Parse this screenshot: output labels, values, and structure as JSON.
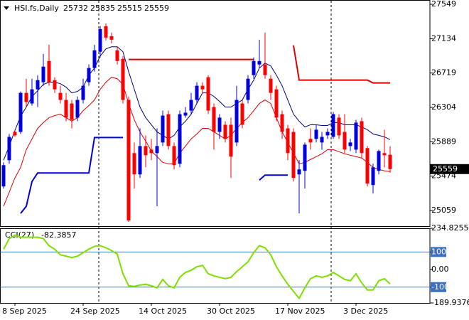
{
  "chart_data": [
    {
      "type": "candlestick",
      "title": "HSI.fs,Daily",
      "categories": [
        null,
        null,
        "8 Sep 2025",
        null,
        null,
        null,
        null,
        null,
        null,
        null,
        null,
        null,
        null,
        null,
        "24 Sep 2025",
        null,
        null,
        null,
        null,
        null,
        null,
        null,
        null,
        null,
        null,
        null,
        "14 Oct 2025",
        null,
        null,
        null,
        null,
        null,
        null,
        null,
        null,
        null,
        null,
        null,
        "30 Oct 2025",
        null,
        null,
        null,
        null,
        null,
        null,
        null,
        null,
        null,
        null,
        null,
        "17 Nov 2025",
        null,
        null,
        null,
        null,
        null,
        null,
        null,
        null,
        null,
        null,
        null,
        "3 Dec 2025",
        null,
        null,
        null,
        null,
        null,
        null
      ],
      "open": [
        25349,
        25666,
        26008,
        26008,
        26479,
        26351,
        26522,
        26608,
        26864,
        26633,
        26479,
        26394,
        26351,
        26180,
        26394,
        26608,
        26779,
        26976,
        27284,
        27164,
        26993,
        26890,
        26394,
        25752,
        25495,
        25837,
        25794,
        25752,
        25880,
        26222,
        25837,
        25623,
        26205,
        26265,
        26394,
        26565,
        26668,
        26308,
        26008,
        26094,
        26094,
        25880,
        26351,
        26394,
        26693,
        26822,
        26822,
        26650,
        26522,
        26222,
        26051,
        26008,
        25495,
        25538,
        25923,
        25923,
        25880,
        25966,
        25948,
        26180,
        26008,
        25837,
        25794,
        26137,
        25812,
        25366,
        25538,
        25752,
        25732
      ],
      "high": [
        25640,
        25983,
        26034,
        26496,
        26650,
        26650,
        26693,
        26950,
        27061,
        26668,
        26565,
        26479,
        26394,
        26436,
        26650,
        26822,
        27061,
        27284,
        27318,
        27207,
        27036,
        26924,
        26436,
        25880,
        26051,
        25966,
        25923,
        26051,
        26265,
        26265,
        25880,
        26265,
        26308,
        26479,
        26608,
        26608,
        26693,
        26351,
        26222,
        26137,
        26180,
        26565,
        26394,
        26693,
        26907,
        27121,
        27207,
        26693,
        26565,
        26265,
        26094,
        26051,
        25666,
        25880,
        26051,
        26094,
        26008,
        26051,
        26248,
        26222,
        26222,
        25923,
        26154,
        26180,
        25837,
        25623,
        25794,
        26034,
        25835
      ],
      "low": [
        25324,
        25623,
        25948,
        25983,
        26308,
        26325,
        26308,
        26565,
        26565,
        26479,
        26351,
        26137,
        26051,
        26137,
        26351,
        26565,
        26736,
        26907,
        27113,
        27078,
        26822,
        26351,
        24921,
        25324,
        25452,
        25580,
        25666,
        25110,
        25837,
        25794,
        25555,
        25580,
        26180,
        26222,
        26351,
        26479,
        26222,
        25794,
        25923,
        25880,
        25452,
        25837,
        26051,
        26351,
        26650,
        26779,
        26650,
        26394,
        26137,
        25923,
        25666,
        25409,
        25024,
        25324,
        25794,
        25880,
        25794,
        25923,
        25923,
        25923,
        25752,
        25777,
        25752,
        25692,
        25349,
        25264,
        25495,
        25580,
        25515
      ],
      "close": [
        25606,
        25948,
        25966,
        26479,
        26368,
        26522,
        26633,
        26796,
        26608,
        26522,
        26394,
        26180,
        26154,
        26394,
        26565,
        26779,
        26993,
        27250,
        27147,
        27121,
        26864,
        26394,
        24938,
        25495,
        25837,
        25726,
        25752,
        25837,
        26205,
        25837,
        25606,
        26222,
        26240,
        26394,
        26565,
        26522,
        26265,
        26008,
        26180,
        25923,
        25709,
        26394,
        26094,
        26650,
        26864,
        26864,
        26693,
        26479,
        26180,
        26008,
        25752,
        25452,
        25555,
        25854,
        25880,
        26034,
        25948,
        26008,
        26222,
        25966,
        25794,
        25880,
        26120,
        25752,
        25384,
        25580,
        25777,
        25726,
        25559
      ],
      "up_color": "#0000dd",
      "down_color": "#ff0000",
      "overlays": [
        {
          "color": "#000080",
          "width": 1,
          "values": [
            25666,
            25837,
            26025,
            26197,
            26308,
            26436,
            26505,
            26582,
            26608,
            26608,
            26590,
            26548,
            26479,
            26496,
            26548,
            26693,
            26779,
            26924,
            27010,
            27036,
            27036,
            26976,
            26736,
            26522,
            26308,
            26180,
            26094,
            26008,
            25966,
            25923,
            25966,
            26068,
            26137,
            26222,
            26351,
            26479,
            26479,
            26436,
            26376,
            26308,
            26308,
            26351,
            26394,
            26522,
            26633,
            26779,
            26839,
            26804,
            26693,
            26565,
            26394,
            26222,
            26137,
            26068,
            26094,
            26094,
            26085,
            26085,
            26120,
            26120,
            26094,
            26094,
            26094,
            26068,
            26034,
            25983,
            25966,
            25948,
            25914
          ]
        },
        {
          "color": "#dd0000",
          "width": 1,
          "values": [
            25110,
            25281,
            25452,
            25580,
            25794,
            25923,
            26051,
            26120,
            26180,
            26205,
            26222,
            26180,
            26137,
            26180,
            26265,
            26325,
            26394,
            26522,
            26608,
            26668,
            26650,
            26582,
            26351,
            26154,
            26008,
            25897,
            25777,
            25709,
            25640,
            25623,
            25623,
            25752,
            25837,
            25923,
            25983,
            26051,
            26051,
            26008,
            25966,
            25923,
            25966,
            26051,
            26120,
            26180,
            26265,
            26351,
            26394,
            26351,
            26180,
            26008,
            25880,
            25752,
            25623,
            25640,
            25675,
            25709,
            25743,
            25794,
            25794,
            25769,
            25743,
            25726,
            25709,
            25692,
            25640,
            25580,
            25555,
            25538,
            25529
          ]
        },
        {
          "color": "#0000dd",
          "width": 2,
          "values": [
            null,
            null,
            null,
            25024,
            25110,
            25409,
            25512,
            25512,
            25512,
            25512,
            25512,
            25512,
            25512,
            25512,
            25512,
            25512,
            25940,
            25940,
            25940,
            25940,
            25940,
            25940,
            null,
            null,
            null,
            null,
            null,
            null,
            null,
            null,
            null,
            null,
            null,
            null,
            null,
            null,
            null,
            null,
            null,
            null,
            null,
            null,
            null,
            null,
            null,
            25426,
            25486,
            25486,
            25486,
            25486,
            25486,
            null,
            null,
            null,
            null,
            null,
            null,
            null,
            null,
            null,
            null,
            null,
            null,
            null,
            null,
            null,
            null,
            null,
            null
          ]
        },
        {
          "color": "#dd0000",
          "width": 2,
          "values": [
            null,
            null,
            null,
            null,
            null,
            null,
            null,
            null,
            null,
            null,
            null,
            null,
            null,
            null,
            null,
            null,
            null,
            null,
            null,
            null,
            null,
            null,
            26882,
            26882,
            26882,
            26882,
            26882,
            26882,
            26882,
            26882,
            26882,
            26882,
            26882,
            26882,
            26882,
            26882,
            26882,
            26882,
            26882,
            26882,
            26882,
            26882,
            26882,
            26882,
            26882,
            null,
            null,
            null,
            null,
            null,
            null,
            27053,
            26633,
            26633,
            26633,
            26633,
            26633,
            26633,
            26633,
            26633,
            26633,
            26633,
            26633,
            26633,
            26633,
            26599,
            26599,
            26599,
            26599
          ]
        }
      ],
      "current_price": 25559,
      "ylim": [
        24870,
        27592
      ],
      "yticks": [
        27549,
        27134,
        26719,
        26304,
        25889,
        25474,
        25059
      ]
    },
    {
      "type": "line",
      "title": "CCI(27)",
      "series": [
        {
          "color": "#7fe000",
          "values": [
            116,
            176,
            196,
            184,
            184,
            184,
            184,
            176,
            136,
            116,
            84,
            76,
            68,
            76,
            96,
            116,
            132,
            136,
            124,
            108,
            88,
            -24,
            -92,
            -96,
            -88,
            -84,
            -92,
            -104,
            -56,
            -92,
            -104,
            -44,
            -16,
            -4,
            16,
            24,
            -24,
            -36,
            -44,
            -52,
            -44,
            -12,
            16,
            44,
            96,
            136,
            124,
            84,
            16,
            -36,
            -84,
            -124,
            -164,
            -104,
            -52,
            -36,
            -44,
            -36,
            -16,
            -36,
            -56,
            -64,
            -24,
            -76,
            -116,
            -116,
            -64,
            -52,
            -82.3857
          ]
        }
      ],
      "levels": [
        100,
        -100
      ],
      "ylim": [
        -189.9376,
        234.8255
      ],
      "yticks": [
        234.8255,
        100,
        {
          "value": 0,
          "label": "0.00"
        },
        -100,
        -189.9376
      ]
    }
  ]
}
